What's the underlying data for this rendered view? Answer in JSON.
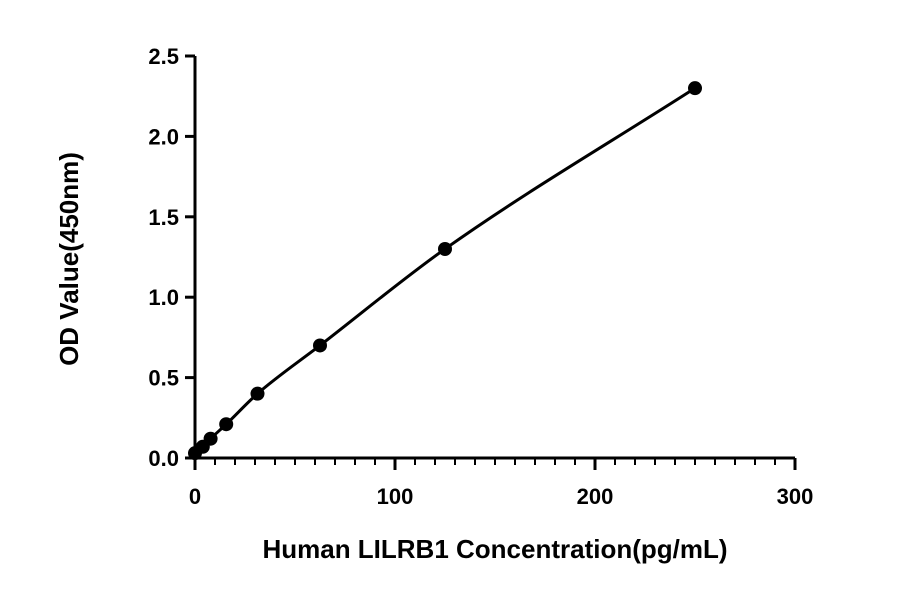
{
  "chart_data": {
    "type": "scatter",
    "xlabel": "Human LILRB1 Concentration(pg/mL)",
    "ylabel": "OD Value(450nm)",
    "xlim": [
      0,
      300
    ],
    "ylim": [
      0,
      2.5
    ],
    "x_ticks": [
      "0",
      "100",
      "200",
      "300"
    ],
    "y_ticks": [
      "0.0",
      "0.5",
      "1.0",
      "1.5",
      "2.0",
      "2.5"
    ],
    "grid": false,
    "series": [
      {
        "points": [
          {
            "x": 0,
            "y": 0.03
          },
          {
            "x": 3.9,
            "y": 0.07
          },
          {
            "x": 7.8,
            "y": 0.12
          },
          {
            "x": 15.6,
            "y": 0.21
          },
          {
            "x": 31.25,
            "y": 0.4
          },
          {
            "x": 62.5,
            "y": 0.7
          },
          {
            "x": 125,
            "y": 1.3
          },
          {
            "x": 250,
            "y": 2.3
          }
        ],
        "fit_curve": true
      }
    ]
  }
}
